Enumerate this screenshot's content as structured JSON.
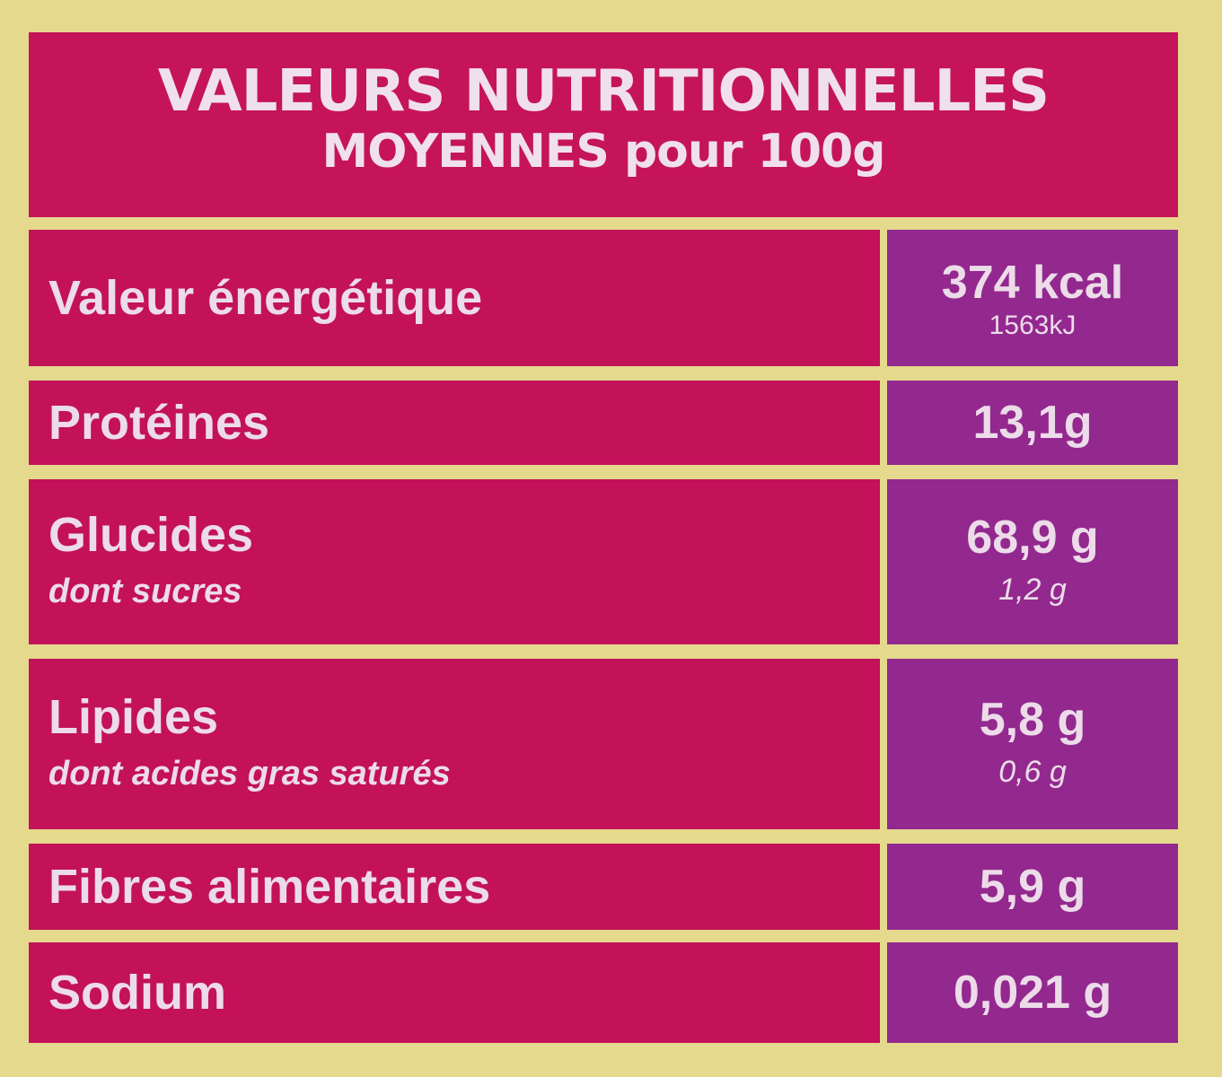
{
  "header": {
    "title": "VALEURS NUTRITIONNELLES",
    "subtitle_bold": "MOYENNES",
    "subtitle_rest": "pour 100g"
  },
  "rows": [
    {
      "label": "Valeur énergétique",
      "value": "374 kcal",
      "sub_value": "1563kJ"
    },
    {
      "label": "Protéines",
      "value": "13,1g"
    },
    {
      "label": "Glucides",
      "value": "68,9 g",
      "sub_label": "dont sucres",
      "sub_value": "1,2 g"
    },
    {
      "label": "Lipides",
      "value": "5,8 g",
      "sub_label": "dont acides gras saturés",
      "sub_value": "0,6 g"
    },
    {
      "label": "Fibres alimentaires",
      "value": "5,9 g"
    },
    {
      "label": "Sodium",
      "value": "0,021 g"
    }
  ]
}
